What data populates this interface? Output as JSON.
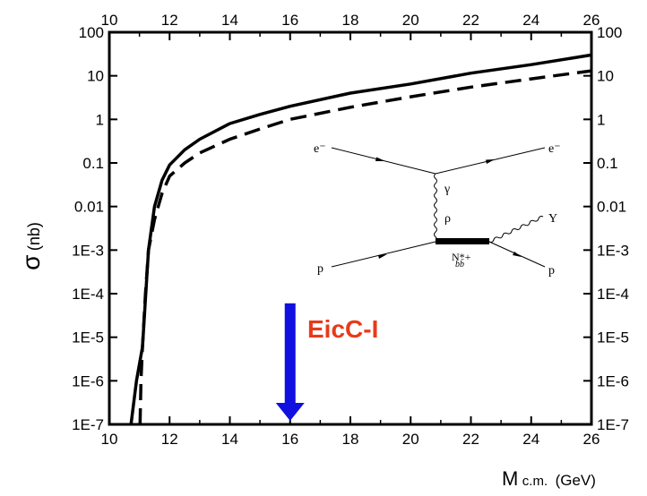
{
  "chart_data": {
    "type": "line",
    "title": "",
    "xlabel_main": "M",
    "xlabel_sub": "c.m.",
    "xlabel_unit": "(GeV)",
    "ylabel_main": "σ",
    "ylabel_unit": "(nb)",
    "xlim": [
      10,
      26
    ],
    "ylim": [
      1e-07,
      100
    ],
    "yscale": "log",
    "grid": false,
    "x_ticks": [
      "10",
      "12",
      "14",
      "16",
      "18",
      "20",
      "22",
      "24",
      "26"
    ],
    "y_ticks": [
      "1E-7",
      "1E-6",
      "1E-5",
      "1E-4",
      "1E-3",
      "0.01",
      "0.1",
      "1",
      "10",
      "100"
    ],
    "series": [
      {
        "style": "solid",
        "x": [
          10.72,
          10.9,
          11.1,
          11.3,
          11.5,
          11.75,
          12.0,
          12.5,
          13.0,
          14.0,
          15.0,
          16.0,
          18.0,
          20.0,
          22.0,
          24.0,
          26.0
        ],
        "y": [
          1e-07,
          1e-06,
          6e-06,
          0.001,
          0.01,
          0.04,
          0.09,
          0.2,
          0.35,
          0.8,
          1.3,
          2.0,
          4.0,
          6.5,
          11.5,
          18,
          30
        ]
      },
      {
        "style": "dashed",
        "x": [
          11.02,
          11.05,
          11.1,
          11.2,
          11.3,
          11.5,
          11.75,
          12.0,
          12.5,
          13.0,
          14.0,
          15.0,
          16.0,
          18.0,
          20.0,
          22.0,
          24.0,
          26.0
        ],
        "y": [
          1e-07,
          1e-06,
          6e-06,
          0.0001,
          0.001,
          0.005,
          0.02,
          0.05,
          0.1,
          0.17,
          0.35,
          0.6,
          1.0,
          1.9,
          3.3,
          5.5,
          8.5,
          13
        ]
      }
    ],
    "annotation_arrow": {
      "x": 16,
      "y_from": 6e-05,
      "y_to": 1e-07,
      "color": "#1010e0"
    },
    "annotation_label": {
      "text": "EicC-I",
      "color": "#e83a1a"
    },
    "inset_diagram": {
      "labels": {
        "e_in": "e⁻",
        "e_out": "e⁻",
        "gamma": "γ",
        "rho": "ρ",
        "p_in": "p",
        "p_out": "p",
        "upsilon": "Υ",
        "nstar": "N*+",
        "nstar_sub": "bb̄"
      }
    }
  }
}
